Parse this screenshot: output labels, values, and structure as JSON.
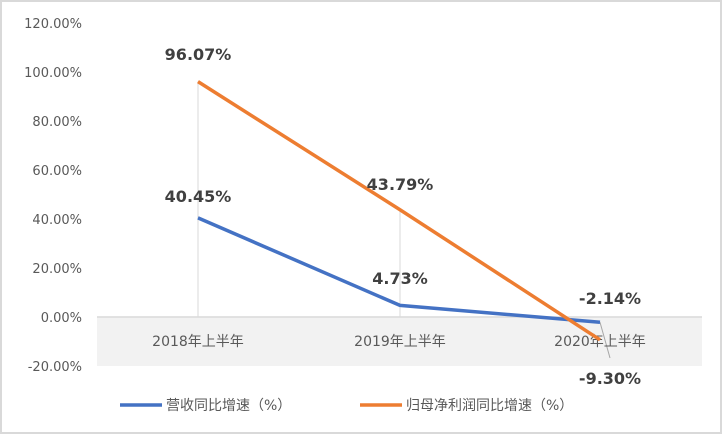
{
  "chart_data": {
    "type": "line",
    "categories": [
      "2018年上半年",
      "2019年上半年",
      "2020年上半年"
    ],
    "series": [
      {
        "name": "营收同比增速（%）",
        "values": [
          40.45,
          4.73,
          -2.14
        ],
        "labels": [
          "40.45%",
          "4.73%",
          "-2.14%"
        ],
        "color": "#4472c4"
      },
      {
        "name": "归母净利润同比增速（%）",
        "values": [
          96.07,
          43.79,
          -9.3
        ],
        "labels": [
          "96.07%",
          "43.79%",
          "-9.30%"
        ],
        "color": "#ed7d31"
      }
    ],
    "ylim": [
      -20,
      120
    ],
    "yticks": [
      "-20.00%",
      "0.00%",
      "20.00%",
      "40.00%",
      "60.00%",
      "80.00%",
      "100.00%",
      "120.00%"
    ],
    "ytick_values": [
      -20,
      0,
      20,
      40,
      60,
      80,
      100,
      120
    ],
    "legend": "bottom",
    "grid": false
  }
}
